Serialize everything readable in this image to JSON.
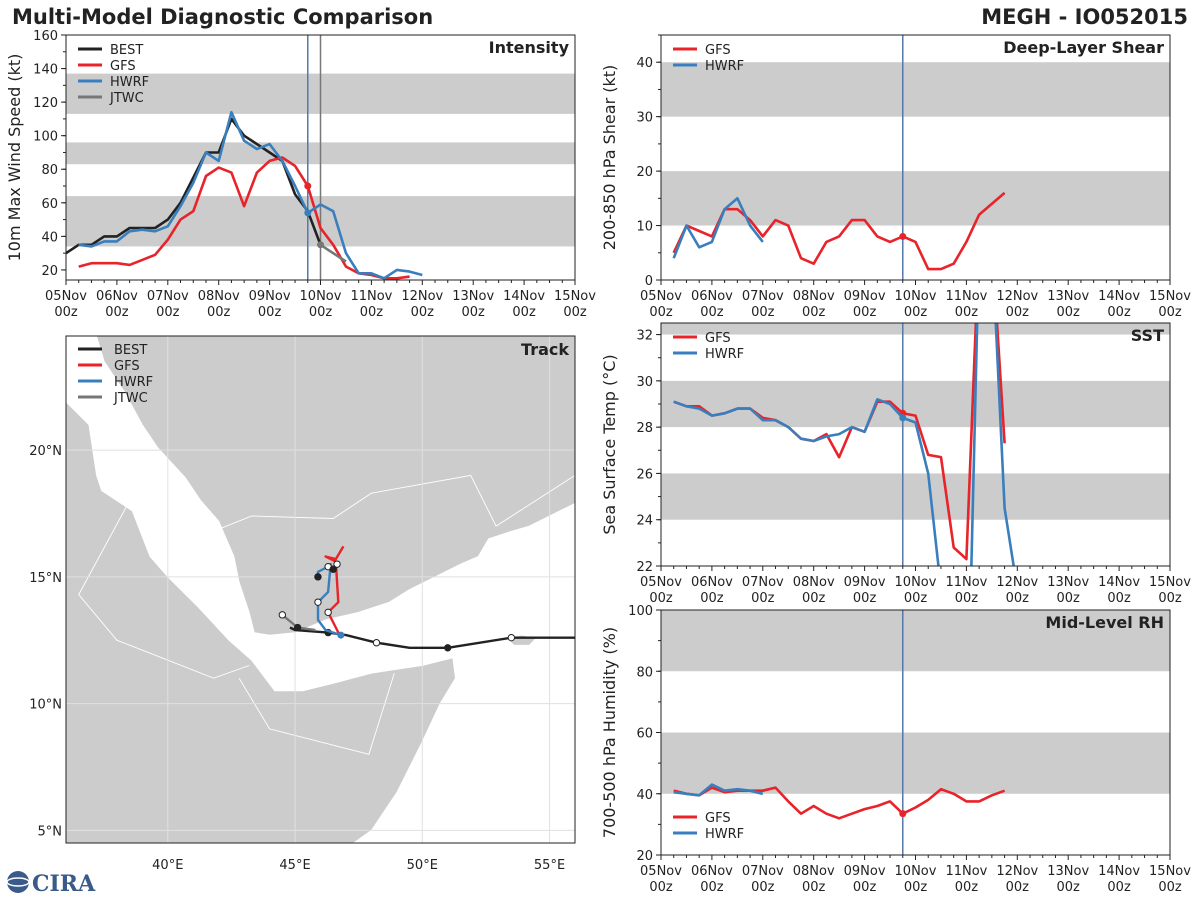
{
  "header": {
    "title_left": "Multi-Model Diagnostic Comparison",
    "title_right": "MEGH - IO052015"
  },
  "logo_text": "CIRA",
  "colors": {
    "BEST": "#222222",
    "GFS": "#e8232a",
    "HWRF": "#3a7fbd",
    "JTWC": "#777777",
    "band": "#cccccc",
    "vline": "#5577aa",
    "land": "#cccccc",
    "sea": "#ffffff"
  },
  "time_ticks": [
    "05Nov\n00z",
    "06Nov\n00z",
    "07Nov\n00z",
    "08Nov\n00z",
    "09Nov\n00z",
    "10Nov\n00z",
    "11Nov\n00z",
    "12Nov\n00z",
    "13Nov\n00z",
    "14Nov\n00z",
    "15Nov\n00z"
  ],
  "chart_data": [
    {
      "id": "intensity",
      "type": "line",
      "title": "Intensity",
      "ylabel": "10m Max Wind Speed (kt)",
      "xlim": [
        0,
        10
      ],
      "ylim": [
        14,
        160
      ],
      "yticks": [
        20,
        40,
        60,
        80,
        100,
        120,
        140,
        160
      ],
      "bands": [
        [
          34,
          64
        ],
        [
          83,
          96
        ],
        [
          113,
          137
        ]
      ],
      "vlines": [
        {
          "x": 4.75,
          "color": "vline"
        },
        {
          "x": 5.0,
          "color": "JTWC"
        }
      ],
      "legend": [
        "BEST",
        "GFS",
        "HWRF",
        "JTWC"
      ],
      "series": [
        {
          "name": "BEST",
          "x": [
            0,
            0.25,
            0.5,
            0.75,
            1,
            1.25,
            1.5,
            1.75,
            2,
            2.25,
            2.5,
            2.75,
            3,
            3.25,
            3.5,
            3.75,
            4,
            4.25,
            4.5,
            4.75,
            5
          ],
          "y": [
            30,
            35,
            35,
            40,
            40,
            45,
            45,
            45,
            50,
            60,
            75,
            90,
            90,
            110,
            100,
            95,
            90,
            85,
            65,
            55,
            35
          ]
        },
        {
          "name": "GFS",
          "x": [
            0.25,
            0.5,
            0.75,
            1,
            1.25,
            1.5,
            1.75,
            2,
            2.25,
            2.5,
            2.75,
            3,
            3.25,
            3.5,
            3.75,
            4,
            4.25,
            4.5,
            4.75,
            5,
            5.25,
            5.5,
            5.75,
            6,
            6.25,
            6.5,
            6.75
          ],
          "y": [
            22,
            24,
            24,
            24,
            23,
            26,
            29,
            38,
            50,
            55,
            76,
            81,
            78,
            58,
            78,
            85,
            87,
            82,
            70,
            45,
            35,
            22,
            18,
            17,
            15,
            15,
            16
          ],
          "marker": {
            "x": 4.75,
            "y": 70
          }
        },
        {
          "name": "HWRF",
          "x": [
            0.25,
            0.5,
            0.75,
            1,
            1.25,
            1.5,
            1.75,
            2,
            2.25,
            2.5,
            2.75,
            3,
            3.25,
            3.5,
            3.75,
            4,
            4.25,
            4.5,
            4.75,
            5,
            5.25,
            5.5,
            5.75,
            6,
            6.25,
            6.5,
            6.75,
            7
          ],
          "y": [
            35,
            34,
            37,
            37,
            43,
            44,
            43,
            46,
            58,
            72,
            90,
            85,
            114,
            97,
            92,
            95,
            85,
            70,
            54,
            59,
            55,
            30,
            18,
            18,
            15,
            20,
            19,
            17
          ],
          "marker": {
            "x": 4.75,
            "y": 54
          }
        },
        {
          "name": "JTWC",
          "x": [
            5,
            5.25,
            5.5
          ],
          "y": [
            35,
            30,
            25
          ],
          "marker": {
            "x": 5,
            "y": 35
          }
        }
      ]
    },
    {
      "id": "shear",
      "type": "line",
      "title": "Deep-Layer Shear",
      "ylabel": "200-850 hPa Shear (kt)",
      "xlim": [
        0,
        10
      ],
      "ylim": [
        0,
        45
      ],
      "yticks": [
        0,
        10,
        20,
        30,
        40
      ],
      "bands": [
        [
          10,
          20
        ],
        [
          30,
          40
        ]
      ],
      "vlines": [
        {
          "x": 4.75,
          "color": "vline"
        }
      ],
      "legend": [
        "GFS",
        "HWRF"
      ],
      "series": [
        {
          "name": "GFS",
          "x": [
            0.25,
            0.5,
            0.75,
            1,
            1.25,
            1.5,
            1.75,
            2,
            2.25,
            2.5,
            2.75,
            3,
            3.25,
            3.5,
            3.75,
            4,
            4.25,
            4.5,
            4.75,
            5,
            5.25,
            5.5,
            5.75,
            6,
            6.25,
            6.5,
            6.75
          ],
          "y": [
            5,
            10,
            9,
            8,
            13,
            13,
            11,
            8,
            11,
            10,
            4,
            3,
            7,
            8,
            11,
            11,
            8,
            7,
            8,
            7,
            2,
            2,
            3,
            7,
            12,
            14,
            16
          ],
          "marker": {
            "x": 4.75,
            "y": 8
          }
        },
        {
          "name": "HWRF",
          "x": [
            0.25,
            0.5,
            0.75,
            1,
            1.25,
            1.5,
            1.75,
            2
          ],
          "y": [
            4,
            10,
            6,
            7,
            13,
            15,
            10,
            7
          ]
        }
      ]
    },
    {
      "id": "sst",
      "type": "line",
      "title": "SST",
      "ylabel": "Sea Surface Temp (°C)",
      "xlim": [
        0,
        10
      ],
      "ylim": [
        22,
        32.5
      ],
      "yticks": [
        22,
        24,
        26,
        28,
        30,
        32
      ],
      "bands": [
        [
          24,
          26
        ],
        [
          28,
          30
        ],
        [
          32,
          32.5
        ]
      ],
      "vlines": [
        {
          "x": 4.75,
          "color": "vline"
        }
      ],
      "legend": [
        "GFS",
        "HWRF"
      ],
      "series": [
        {
          "name": "GFS",
          "x": [
            0.25,
            0.5,
            0.75,
            1,
            1.25,
            1.5,
            1.75,
            2,
            2.25,
            2.5,
            2.75,
            3,
            3.25,
            3.5,
            3.75,
            4,
            4.25,
            4.5,
            4.75,
            5,
            5.25,
            5.5,
            5.75,
            6,
            6.25,
            6.5,
            6.75
          ],
          "y": [
            29.1,
            28.9,
            28.9,
            28.5,
            28.6,
            28.8,
            28.8,
            28.4,
            28.3,
            28.0,
            27.5,
            27.4,
            27.7,
            26.7,
            28.0,
            27.8,
            29.1,
            29.1,
            28.6,
            28.5,
            26.8,
            26.7,
            22.8,
            22.3,
            36,
            36,
            27.3
          ],
          "marker": {
            "x": 4.75,
            "y": 28.6
          }
        },
        {
          "name": "HWRF",
          "x": [
            0.25,
            0.5,
            0.75,
            1,
            1.25,
            1.5,
            1.75,
            2,
            2.25,
            2.5,
            2.75,
            3,
            3.25,
            3.5,
            3.75,
            4,
            4.25,
            4.5,
            4.75,
            5,
            5.25,
            5.5,
            5.75,
            6,
            6.25,
            6.5,
            6.75,
            7
          ],
          "y": [
            29.1,
            28.9,
            28.8,
            28.5,
            28.6,
            28.8,
            28.8,
            28.3,
            28.3,
            28.0,
            27.5,
            27.4,
            27.6,
            27.7,
            28.0,
            27.8,
            29.2,
            29.0,
            28.4,
            28.2,
            26.0,
            21.0,
            13,
            13,
            36,
            36,
            24.5,
            21.0
          ],
          "marker": {
            "x": 4.75,
            "y": 28.4
          }
        }
      ]
    },
    {
      "id": "rh",
      "type": "line",
      "title": "Mid-Level RH",
      "ylabel": "700-500 hPa Humidity (%)",
      "xlim": [
        0,
        10
      ],
      "ylim": [
        20,
        100
      ],
      "yticks": [
        20,
        40,
        60,
        80,
        100
      ],
      "bands": [
        [
          40,
          60
        ],
        [
          80,
          100
        ]
      ],
      "vlines": [
        {
          "x": 4.75,
          "color": "vline"
        }
      ],
      "legend": [
        "GFS",
        "HWRF"
      ],
      "legend_pos": "bottom-left",
      "series": [
        {
          "name": "GFS",
          "x": [
            0.25,
            0.5,
            0.75,
            1,
            1.25,
            1.5,
            1.75,
            2,
            2.25,
            2.5,
            2.75,
            3,
            3.25,
            3.5,
            3.75,
            4,
            4.25,
            4.5,
            4.75,
            5,
            5.25,
            5.5,
            5.75,
            6,
            6.25,
            6.5,
            6.75
          ],
          "y": [
            41,
            40,
            39.5,
            42,
            40.5,
            41,
            41,
            41,
            42,
            37.5,
            33.5,
            36,
            33.5,
            32,
            33.5,
            35,
            36,
            37.5,
            33.5,
            35.5,
            38,
            41.5,
            40,
            37.5,
            37.5,
            39.5,
            41
          ],
          "marker": {
            "x": 4.75,
            "y": 33.5
          }
        },
        {
          "name": "HWRF",
          "x": [
            0.25,
            0.5,
            0.75,
            1,
            1.25,
            1.5,
            1.75,
            2
          ],
          "y": [
            40.5,
            40,
            39.5,
            43,
            41,
            41.5,
            41,
            40
          ]
        }
      ]
    },
    {
      "id": "track",
      "type": "map",
      "title": "Track",
      "lonlim": [
        36,
        56
      ],
      "latlim": [
        4.5,
        24.5
      ],
      "lon_ticks": [
        "40°E",
        "45°E",
        "50°E",
        "55°E"
      ],
      "lat_ticks": [
        "5°N",
        "10°N",
        "15°N",
        "20°N"
      ],
      "legend": [
        "BEST",
        "GFS",
        "HWRF",
        "JTWC"
      ],
      "tracks": [
        {
          "name": "BEST",
          "lon": [
            56,
            53.5,
            51,
            49.5,
            48.2,
            47,
            46.3,
            45,
            44.8
          ],
          "lat": [
            12.6,
            12.6,
            12.2,
            12.2,
            12.4,
            12.7,
            12.8,
            12.9,
            13.0
          ],
          "open": [
            [
              53.5,
              12.6
            ],
            [
              48.2,
              12.4
            ]
          ],
          "filled": [
            [
              51,
              12.2
            ],
            [
              46.3,
              12.8
            ]
          ]
        },
        {
          "name": "GFS",
          "lon": [
            46.8,
            46.6,
            46.3,
            46.7,
            46.6,
            46.2,
            46.6,
            46.9
          ],
          "lat": [
            12.6,
            13.0,
            13.6,
            14.0,
            15.6,
            15.8,
            15.7,
            16.2
          ]
        },
        {
          "name": "HWRF",
          "lon": [
            46.8,
            46.2,
            45.9,
            45.9,
            46.3,
            46.4,
            46.3,
            45.9,
            45.9
          ],
          "lat": [
            12.7,
            12.9,
            13.3,
            14.0,
            14.4,
            15.5,
            15.4,
            15.2,
            15.0
          ],
          "open": [
            [
              45.9,
              14.0
            ],
            [
              46.3,
              13.6
            ],
            [
              46.3,
              15.4
            ],
            [
              46.65,
              15.5
            ]
          ],
          "filled": [
            [
              45.9,
              15.0
            ],
            [
              46.5,
              15.3
            ]
          ]
        },
        {
          "name": "JTWC",
          "lon": [
            44.5,
            45.1,
            45.8
          ],
          "lat": [
            13.5,
            13.0,
            12.9
          ],
          "open": [
            [
              44.5,
              13.5
            ]
          ],
          "filled": [
            [
              45.1,
              13.0
            ]
          ]
        }
      ],
      "markers": [
        {
          "series": "HWRF",
          "lon": 46.8,
          "lat": 12.7
        }
      ]
    }
  ]
}
